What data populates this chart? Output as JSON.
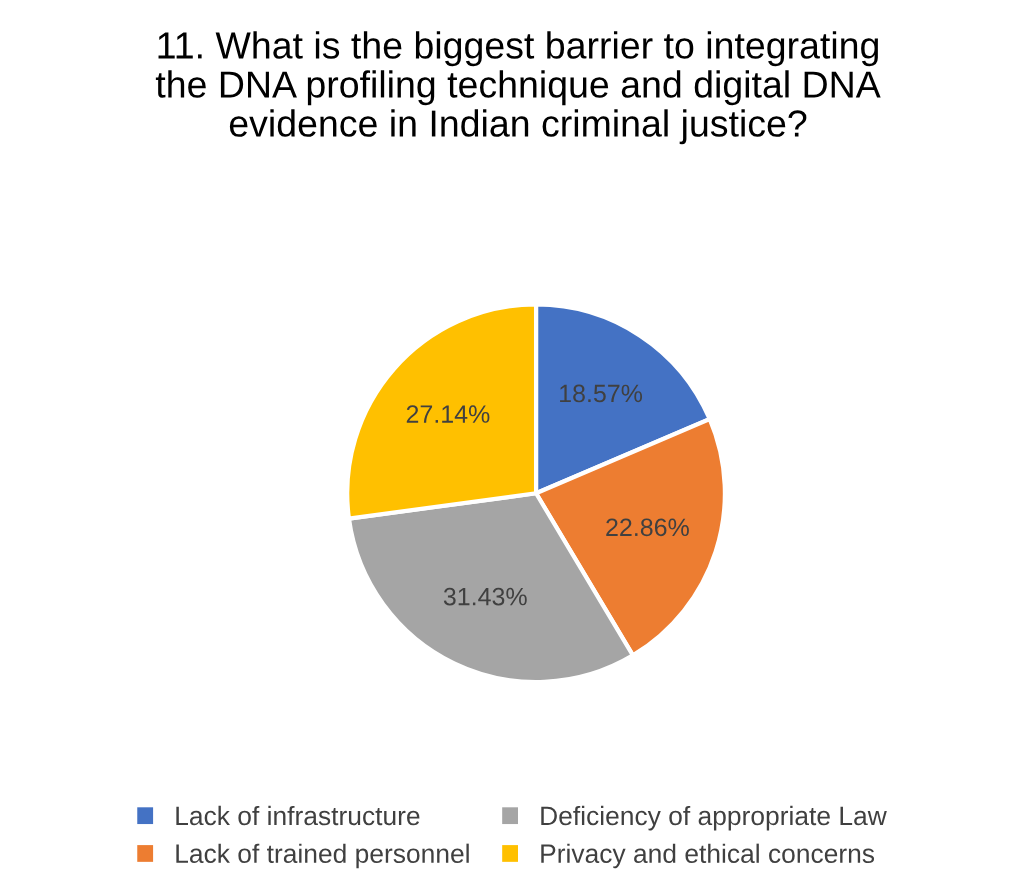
{
  "chart_data": {
    "type": "pie",
    "title": "11. What is the biggest barrier to integrating the DNA profiling technique and digital DNA evidence in Indian criminal justice?",
    "categories": [
      "Lack of infrastructure",
      "Lack of trained personnel",
      "Deficiency of appropriate Law",
      "Privacy and ethical concerns"
    ],
    "values": [
      18.57,
      22.86,
      31.43,
      27.14
    ],
    "value_labels": [
      "18.57%",
      "22.86%",
      "31.43%",
      "27.14%"
    ],
    "colors": [
      "#4472c4",
      "#ed7d31",
      "#a5a5a5",
      "#ffc000"
    ],
    "legend": "bottom"
  }
}
